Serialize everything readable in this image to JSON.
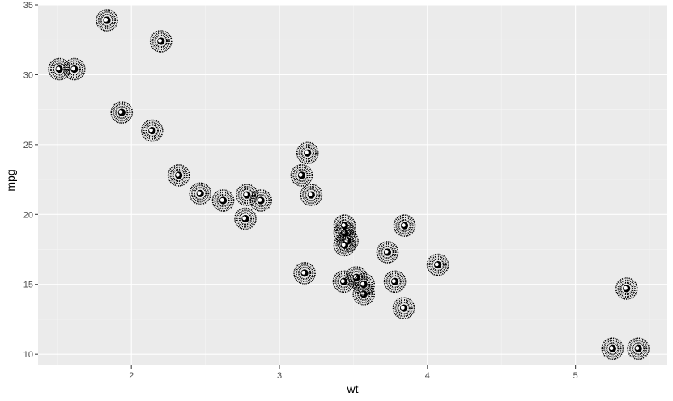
{
  "chart_data": {
    "type": "scatter",
    "xlabel": "wt",
    "ylabel": "mpg",
    "xlim": [
      1.37,
      5.62
    ],
    "ylim": [
      9.2,
      35.0
    ],
    "x_ticks": [
      2,
      3,
      4,
      5
    ],
    "y_ticks": [
      10,
      15,
      20,
      25,
      30,
      35
    ],
    "grid": true,
    "legend": "none",
    "colors": {
      "panel": "#ebebeb",
      "grid_major": "#ffffff",
      "grid_minor": "#f5f5f5",
      "point": "#000000",
      "text": "#4d4d4d"
    },
    "marker": "ring-with-white-center",
    "points": [
      {
        "x": 2.62,
        "y": 21.0
      },
      {
        "x": 2.875,
        "y": 21.0
      },
      {
        "x": 2.32,
        "y": 22.8
      },
      {
        "x": 3.215,
        "y": 21.4
      },
      {
        "x": 3.44,
        "y": 18.7
      },
      {
        "x": 3.46,
        "y": 18.1
      },
      {
        "x": 3.57,
        "y": 14.3
      },
      {
        "x": 3.19,
        "y": 24.4
      },
      {
        "x": 3.15,
        "y": 22.8
      },
      {
        "x": 3.44,
        "y": 19.2
      },
      {
        "x": 3.44,
        "y": 17.8
      },
      {
        "x": 4.07,
        "y": 16.4
      },
      {
        "x": 3.73,
        "y": 17.3
      },
      {
        "x": 3.78,
        "y": 15.2
      },
      {
        "x": 5.25,
        "y": 10.4
      },
      {
        "x": 5.424,
        "y": 10.4
      },
      {
        "x": 5.345,
        "y": 14.7
      },
      {
        "x": 2.2,
        "y": 32.4
      },
      {
        "x": 1.615,
        "y": 30.4
      },
      {
        "x": 1.835,
        "y": 33.9
      },
      {
        "x": 2.465,
        "y": 21.5
      },
      {
        "x": 3.52,
        "y": 15.5
      },
      {
        "x": 3.435,
        "y": 15.2
      },
      {
        "x": 3.84,
        "y": 13.3
      },
      {
        "x": 3.845,
        "y": 19.2
      },
      {
        "x": 1.935,
        "y": 27.3
      },
      {
        "x": 2.14,
        "y": 26.0
      },
      {
        "x": 1.513,
        "y": 30.4
      },
      {
        "x": 3.17,
        "y": 15.8
      },
      {
        "x": 2.77,
        "y": 19.7
      },
      {
        "x": 3.57,
        "y": 15.0
      },
      {
        "x": 2.78,
        "y": 21.4
      }
    ]
  }
}
